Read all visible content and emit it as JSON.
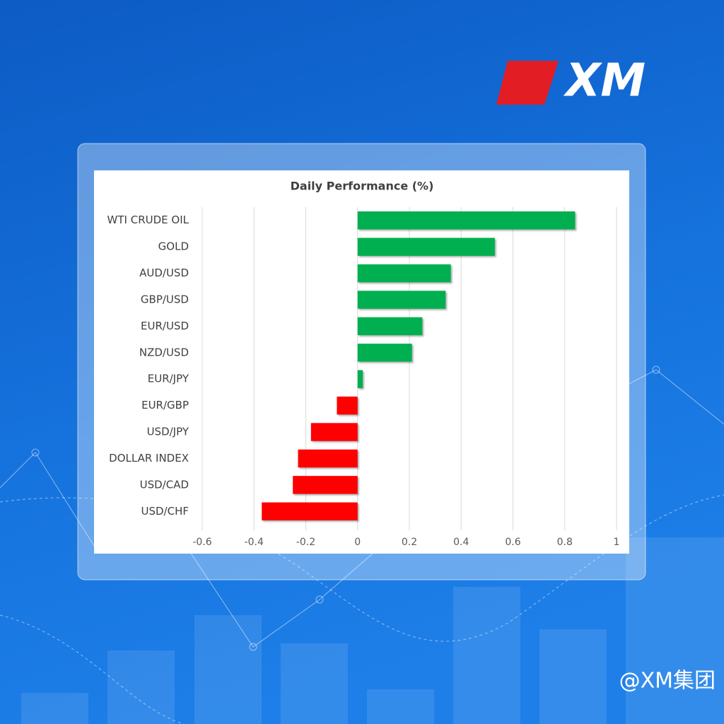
{
  "chart_data": {
    "type": "bar",
    "orientation": "horizontal",
    "title": "Daily Performance (%)",
    "categories": [
      "WTI CRUDE OIL",
      "GOLD",
      "AUD/USD",
      "GBP/USD",
      "EUR/USD",
      "NZD/USD",
      "EUR/JPY",
      "EUR/GBP",
      "USD/JPY",
      "DOLLAR INDEX",
      "USD/CAD",
      "USD/CHF"
    ],
    "values": [
      0.84,
      0.53,
      0.36,
      0.34,
      0.25,
      0.21,
      0.02,
      -0.08,
      -0.18,
      -0.23,
      -0.25,
      -0.37
    ],
    "positive_color": "#00b050",
    "negative_color": "#ff0000",
    "xlim": [
      -0.6,
      1
    ],
    "xticks": [
      -0.6,
      -0.4,
      -0.2,
      0,
      0.2,
      0.4,
      0.6,
      0.8,
      1
    ],
    "grid": true
  },
  "brand": {
    "logo": "XM",
    "watermark": "@XM集团"
  }
}
